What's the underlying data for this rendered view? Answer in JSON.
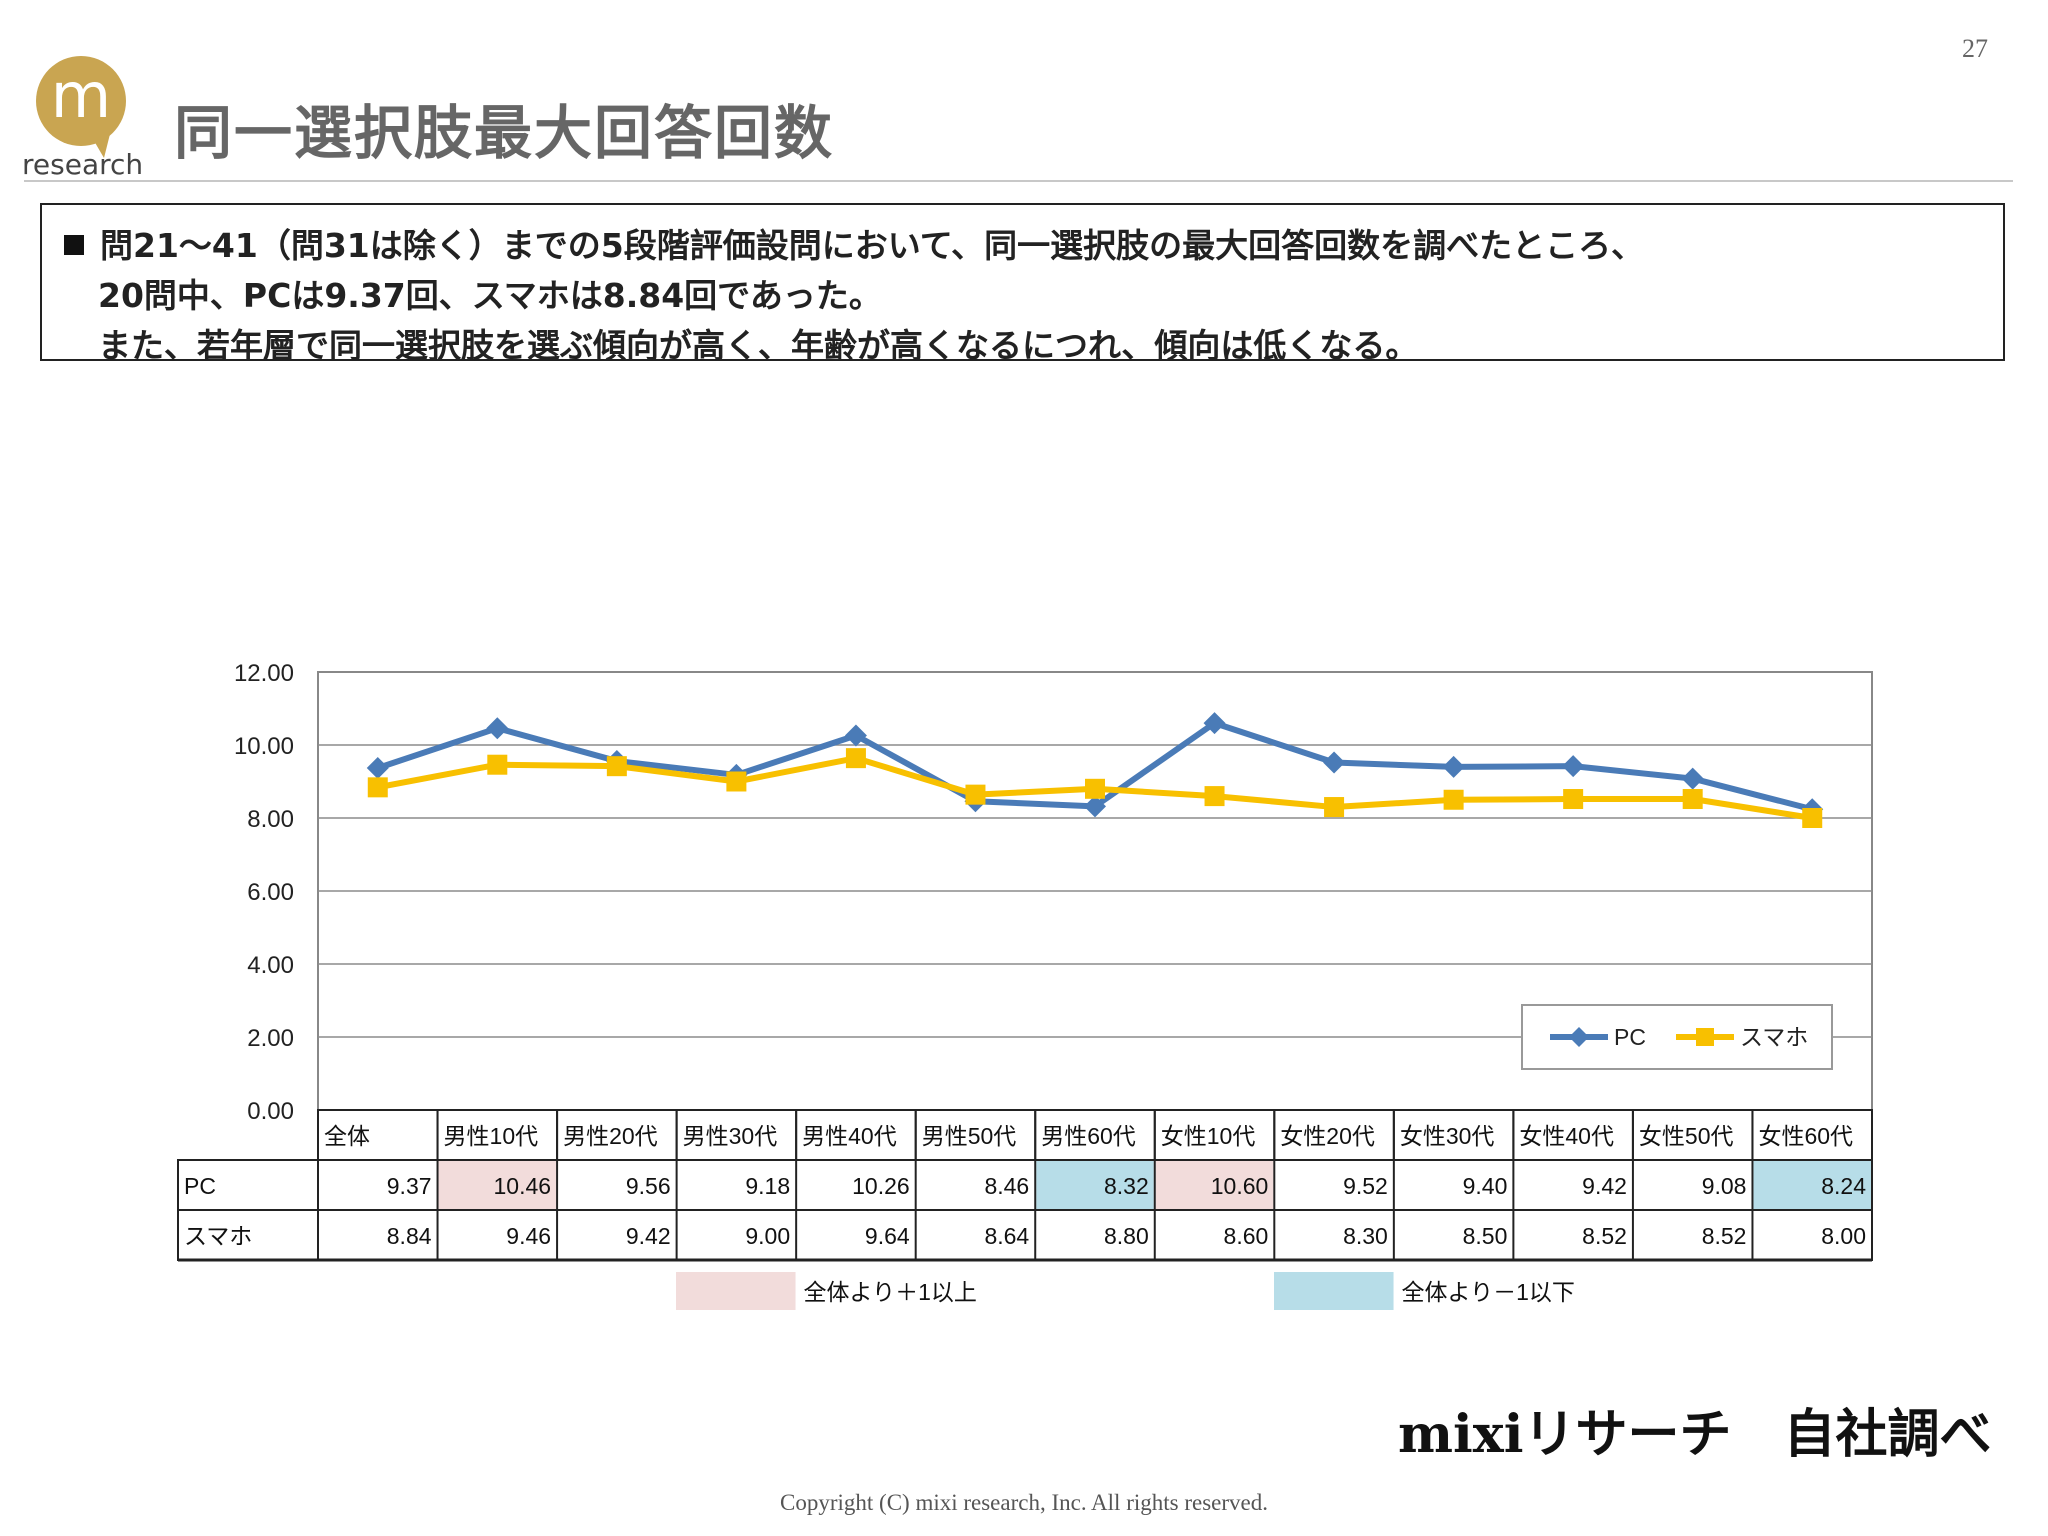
{
  "page": {
    "number": "27"
  },
  "logo": {
    "text": "research",
    "glyph": "m"
  },
  "title": "同一選択肢最大回答回数",
  "summary": {
    "lines": [
      "問21～41（問31は除く）までの5段階評価設問において、同一選択肢の最大回答回数を調べたところ、",
      "20問中、PCは9.37回、スマホは8.84回であった。",
      "また、若年層で同一選択肢を選ぶ傾向が高く、年齢が高くなるにつれ、傾向は低くなる。"
    ]
  },
  "chart_data": {
    "type": "line",
    "categories": [
      "全体",
      "男性10代",
      "男性20代",
      "男性30代",
      "男性40代",
      "男性50代",
      "男性60代",
      "女性10代",
      "女性20代",
      "女性30代",
      "女性40代",
      "女性50代",
      "女性60代"
    ],
    "series": [
      {
        "name": "PC",
        "color": "#4a7bb7",
        "marker": "diamond",
        "values": [
          9.37,
          10.46,
          9.56,
          9.18,
          10.26,
          8.46,
          8.32,
          10.6,
          9.52,
          9.4,
          9.42,
          9.08,
          8.24
        ],
        "display": [
          "9.37",
          "10.46",
          "9.56",
          "9.18",
          "10.26",
          "8.46",
          "8.32",
          "10.60",
          "9.52",
          "9.40",
          "9.42",
          "9.08",
          "8.24"
        ],
        "highlights": [
          "none",
          "plus",
          "none",
          "none",
          "none",
          "none",
          "minus",
          "plus",
          "none",
          "none",
          "none",
          "none",
          "minus"
        ]
      },
      {
        "name": "スマホ",
        "color": "#f8c000",
        "marker": "square",
        "values": [
          8.84,
          9.46,
          9.42,
          9.0,
          9.64,
          8.64,
          8.8,
          8.6,
          8.3,
          8.5,
          8.52,
          8.52,
          8.0
        ],
        "display": [
          "8.84",
          "9.46",
          "9.42",
          "9.00",
          "9.64",
          "8.64",
          "8.80",
          "8.60",
          "8.30",
          "8.50",
          "8.52",
          "8.52",
          "8.00"
        ],
        "highlights": [
          "none",
          "none",
          "none",
          "none",
          "none",
          "none",
          "none",
          "none",
          "none",
          "none",
          "none",
          "none",
          "none"
        ]
      }
    ],
    "ylim": [
      0,
      12
    ],
    "yticks": [
      "0.00",
      "2.00",
      "4.00",
      "6.00",
      "8.00",
      "10.00",
      "12.00"
    ],
    "grid": true,
    "legend_position": "bottom-right",
    "highlight_legend": [
      {
        "key": "plus",
        "label": "全体より＋1以上",
        "color": "#f2dcdb"
      },
      {
        "key": "minus",
        "label": "全体より－1以下",
        "color": "#b7dde8"
      }
    ]
  },
  "source_note": "mixiリサーチ　自社調べ",
  "copyright": "Copyright (C) mixi research, Inc. All rights reserved."
}
